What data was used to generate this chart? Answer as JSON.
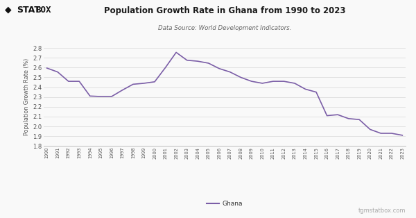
{
  "title": "Population Growth Rate in Ghana from 1990 to 2023",
  "subtitle": "Data Source: World Development Indicators.",
  "ylabel": "Population Growth Rate (%)",
  "line_color": "#7B5EA7",
  "background_color": "#f9f9f9",
  "grid_color": "#dddddd",
  "legend_label": "Ghana",
  "watermark": "tgmstatbox.com",
  "years": [
    1990,
    1991,
    1992,
    1993,
    1994,
    1995,
    1996,
    1997,
    1998,
    1999,
    2000,
    2001,
    2002,
    2003,
    2004,
    2005,
    2006,
    2007,
    2008,
    2009,
    2010,
    2011,
    2012,
    2013,
    2014,
    2015,
    2016,
    2017,
    2018,
    2019,
    2020,
    2021,
    2022,
    2023
  ],
  "values": [
    2.595,
    2.555,
    2.46,
    2.46,
    2.31,
    2.305,
    2.305,
    2.37,
    2.43,
    2.44,
    2.455,
    2.6,
    2.755,
    2.675,
    2.665,
    2.645,
    2.59,
    2.555,
    2.5,
    2.46,
    2.44,
    2.46,
    2.46,
    2.44,
    2.38,
    2.35,
    2.11,
    2.12,
    2.08,
    2.07,
    1.97,
    1.93,
    1.93,
    1.91
  ],
  "ylim": [
    1.8,
    2.8
  ],
  "yticks": [
    1.8,
    1.9,
    2.0,
    2.1,
    2.2,
    2.3,
    2.4,
    2.5,
    2.6,
    2.7,
    2.8
  ]
}
